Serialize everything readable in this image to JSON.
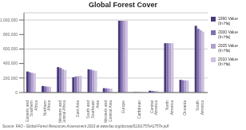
{
  "chart_data": {
    "type": "bar",
    "title": "Global Forest Cover",
    "categories": [
      "Eastern and\nSouthern\nAfrica",
      "Northern\nAfrica",
      "Western and\nCentral Africa",
      "East Asia",
      "South and\nSoutheast\nAsia",
      "Western and\nCentral Asia",
      "Europe",
      "Caribbean",
      "Central\nAmerica",
      "North\nAmerica",
      "Oceania",
      "South\nAmerica"
    ],
    "series": [
      {
        "name": "1990 Value\n(In Ha)",
        "color": "#4a3a7a",
        "values": [
          290000,
          90000,
          350000,
          210000,
          320000,
          60000,
          990000,
          5000,
          25000,
          680000,
          175000,
          920000
        ]
      },
      {
        "name": "2000 Value\n(In Ha)",
        "color": "#8070b0",
        "values": [
          280000,
          85000,
          340000,
          220000,
          315000,
          58000,
          990000,
          5000,
          23000,
          680000,
          170000,
          880000
        ]
      },
      {
        "name": "2005 Value\n(In Ha)",
        "color": "#b0a0cc",
        "values": [
          270000,
          82000,
          320000,
          225000,
          305000,
          55000,
          990000,
          4800,
          22000,
          680000,
          168000,
          860000
        ]
      },
      {
        "name": "2010 Value\n(In Ha)",
        "color": "#cfc0e0",
        "values": [
          265000,
          80000,
          310000,
          230000,
          300000,
          54000,
          990000,
          4700,
          21000,
          680000,
          165000,
          840000
        ]
      }
    ],
    "ylim": [
      0,
      1100000
    ],
    "yticks": [
      0,
      {
        "value": 200000,
        "label": "200,000"
      },
      {
        "value": 400000,
        "label": "400,000"
      },
      {
        "value": 600000,
        "label": "600,000"
      },
      {
        "value": 800000,
        "label": "800,000"
      },
      {
        "value": 1000000,
        "label": "1,000,000"
      }
    ],
    "grid": true,
    "legend": "right",
    "annotations": [
      "Source: FAO - Global Forest Resources Assessment 2010 at www.fao.org/docrep/013/i1757e/i1757e.pdf"
    ]
  }
}
